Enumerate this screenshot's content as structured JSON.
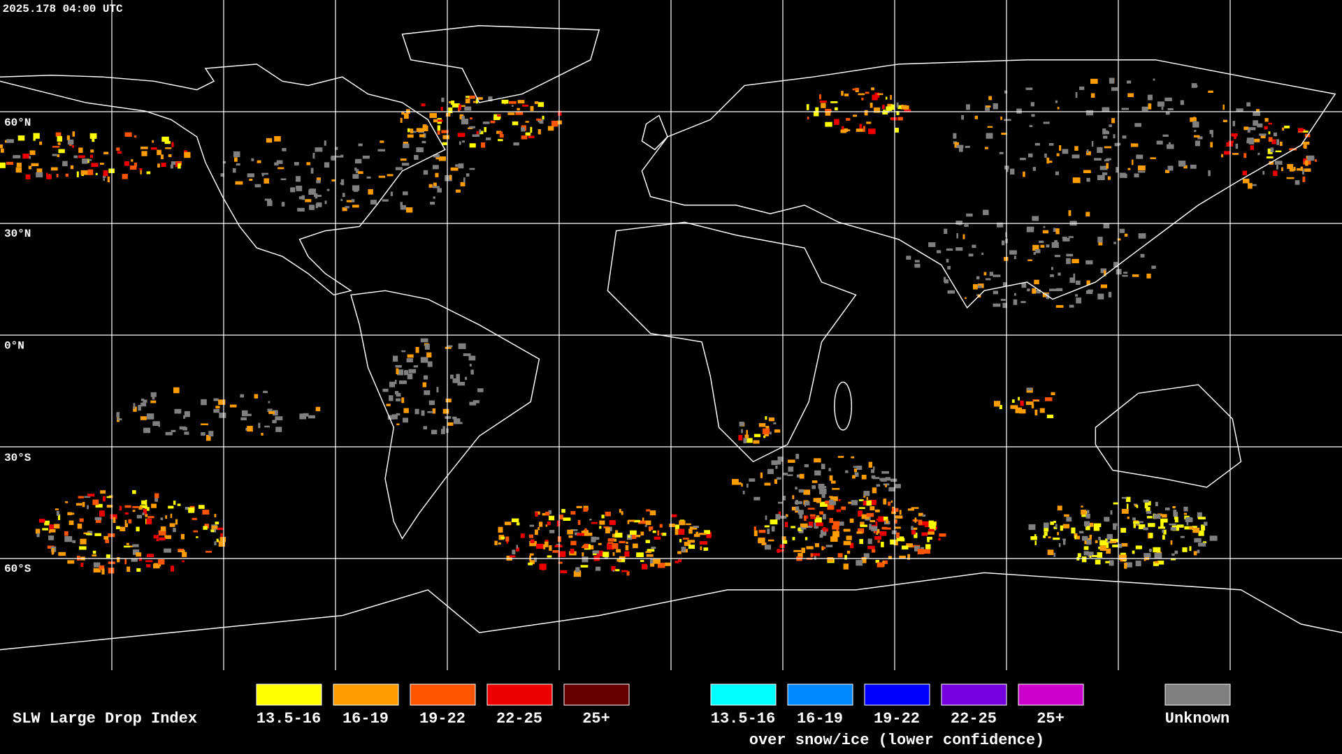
{
  "header": {
    "timestamp": "2025.178 04:00 UTC"
  },
  "latitude_labels": [
    "60°N",
    "30°N",
    "0°N",
    "30°S",
    "60°S"
  ],
  "legend": {
    "title": "SLW Large Drop Index",
    "groups": [
      {
        "items": [
          {
            "label": "13.5-16",
            "color": "#ffff00"
          },
          {
            "label": "16-19",
            "color": "#ff9c00"
          },
          {
            "label": "19-22",
            "color": "#ff5400"
          },
          {
            "label": "22-25",
            "color": "#ee0000"
          },
          {
            "label": "25+",
            "color": "#660000"
          }
        ]
      },
      {
        "items": [
          {
            "label": "13.5-16",
            "color": "#00ffff"
          },
          {
            "label": "16-19",
            "color": "#0088ff"
          },
          {
            "label": "19-22",
            "color": "#0000ff"
          },
          {
            "label": "22-25",
            "color": "#7400dd"
          },
          {
            "label": "25+",
            "color": "#cc00cc"
          }
        ],
        "caption": "over snow/ice (lower confidence)"
      },
      {
        "items": [
          {
            "label": "Unknown",
            "color": "#808080"
          }
        ]
      }
    ]
  }
}
